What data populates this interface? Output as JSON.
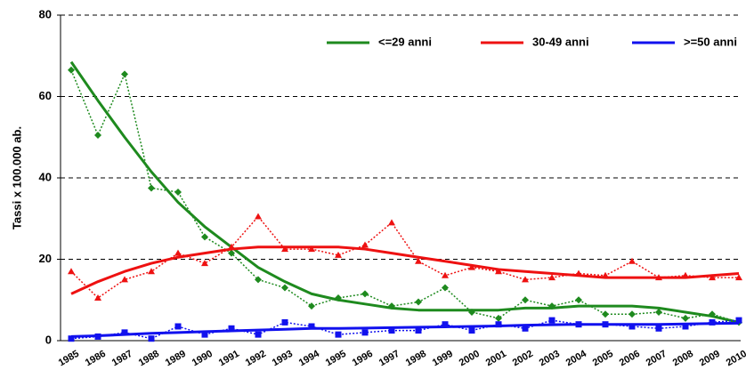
{
  "chart_data": {
    "type": "line",
    "y_label": "Tassi x 100.000 ab.",
    "categories": [
      "1985",
      "1986",
      "1987",
      "1988",
      "1989",
      "1990",
      "1991",
      "1992",
      "1993",
      "1994",
      "1995",
      "1996",
      "1997",
      "1998",
      "1999",
      "2000",
      "2001",
      "2002",
      "2003",
      "2004",
      "2005",
      "2006",
      "2007",
      "2008",
      "2009",
      "2010"
    ],
    "ylim": [
      0,
      80
    ],
    "yticks": [
      0,
      20,
      40,
      60,
      80
    ],
    "grid": true,
    "series": [
      {
        "name": "<=29 anni",
        "color": "#1e8a1e",
        "marker": "diamond",
        "values": [
          66.5,
          50.5,
          65.5,
          37.5,
          36.5,
          25.5,
          21.5,
          15,
          13,
          8.5,
          10.5,
          11.5,
          8.5,
          9.5,
          13,
          7,
          5.5,
          10,
          8.5,
          10,
          6.5,
          6.5,
          7,
          5.5,
          6.5,
          4.5
        ],
        "trend": [
          68.5,
          59,
          50,
          41.5,
          34,
          28,
          23,
          18,
          14.5,
          11.5,
          10,
          9,
          8,
          7.5,
          7.5,
          7.5,
          7.5,
          8,
          8,
          8.5,
          8.5,
          8.5,
          8,
          7,
          6,
          4.5
        ]
      },
      {
        "name": "30-49 anni",
        "color": "#ee1111",
        "marker": "triangle",
        "values": [
          17,
          10.5,
          15,
          17,
          21.5,
          19,
          23,
          30.5,
          22.5,
          22.5,
          21,
          23.5,
          29,
          19.5,
          16,
          18,
          17,
          15,
          15.5,
          16.5,
          16,
          19.5,
          15.5,
          16,
          15.5,
          15.5
        ],
        "trend": [
          11.5,
          14.5,
          17,
          19,
          20.5,
          21.5,
          22.5,
          23,
          23,
          23,
          23,
          22.5,
          21.5,
          20.5,
          19.5,
          18.5,
          17.5,
          17,
          16.5,
          16,
          15.5,
          15.5,
          15.5,
          15.5,
          16,
          16.5
        ]
      },
      {
        "name": ">=50 anni",
        "color": "#1111ee",
        "marker": "square",
        "values": [
          0.5,
          1,
          2,
          0.5,
          3.5,
          1.5,
          3,
          1.5,
          4.5,
          3.5,
          1.5,
          2,
          2.5,
          2.5,
          4,
          2.5,
          4,
          3,
          5,
          4,
          4,
          3.5,
          3,
          3.5,
          4.5,
          5
        ],
        "trend": [
          1,
          1.2,
          1.5,
          1.8,
          2,
          2.2,
          2.4,
          2.6,
          2.8,
          3,
          3,
          3.1,
          3.2,
          3.3,
          3.4,
          3.5,
          3.6,
          3.8,
          3.9,
          4,
          4,
          4,
          4,
          4.1,
          4.2,
          4.3
        ]
      }
    ]
  }
}
